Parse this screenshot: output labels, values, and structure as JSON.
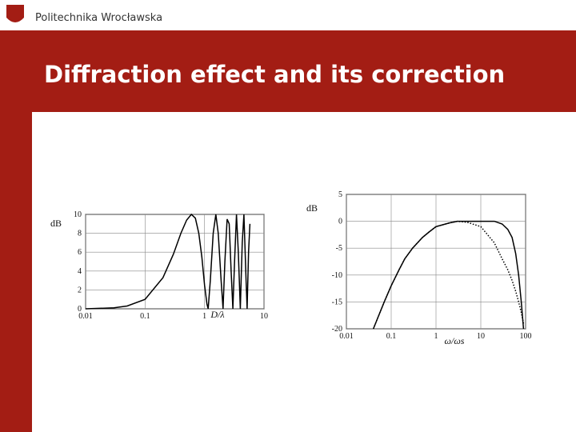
{
  "header": {
    "logo_text": "Politechnika Wrocławska",
    "title": "Diffraction effect and its correction"
  },
  "chart_data": [
    {
      "type": "line",
      "y_label": "dB",
      "x_label": "D/λ",
      "xlog": true,
      "grid": true,
      "xlim": [
        0.01,
        10
      ],
      "xticks": [
        0.01,
        0.1,
        1,
        10
      ],
      "ylim": [
        0,
        10
      ],
      "yticks": [
        0,
        2,
        4,
        6,
        8,
        10
      ],
      "x": [
        0.01,
        0.03,
        0.05,
        0.1,
        0.2,
        0.3,
        0.4,
        0.5,
        0.6,
        0.7,
        0.8,
        0.9,
        1.0,
        1.1,
        1.15,
        1.25,
        1.4,
        1.55,
        1.7,
        1.9,
        2.05,
        2.2,
        2.4,
        2.6,
        2.8,
        3.0,
        3.2,
        3.45,
        3.7,
        4.0,
        4.3,
        4.6,
        5.0,
        5.2,
        5.5,
        5.8
      ],
      "values": [
        0,
        0.1,
        0.3,
        1,
        3.3,
        5.8,
        8,
        9.4,
        10,
        9.6,
        8,
        5.5,
        2.5,
        0.5,
        0,
        3,
        8,
        10,
        8,
        3,
        0,
        5,
        9.5,
        9,
        4,
        0,
        5,
        10,
        6,
        0,
        7,
        10,
        3,
        0,
        6,
        9
      ],
      "color": "#000000"
    },
    {
      "type": "line",
      "y_label": "dB",
      "x_label": "ω/ωs",
      "xlog": true,
      "grid": true,
      "xlim": [
        0.01,
        100
      ],
      "xticks": [
        0.01,
        0.1,
        1,
        10,
        100
      ],
      "ylim": [
        -20,
        5
      ],
      "yticks": [
        -20,
        -15,
        -10,
        -5,
        0,
        5
      ],
      "x": [
        0.04,
        0.05,
        0.07,
        0.1,
        0.15,
        0.2,
        0.3,
        0.5,
        0.7,
        1,
        2,
        3,
        5,
        10,
        20,
        30,
        40,
        50,
        60,
        70,
        80,
        90
      ],
      "series": [
        {
          "color": "#000000",
          "style": "solid",
          "values": [
            -20,
            -18,
            -15,
            -12,
            -9,
            -7,
            -5,
            -3,
            -2,
            -1,
            -0.3,
            0,
            0,
            0,
            0,
            -0.5,
            -1.5,
            -3,
            -6,
            -10,
            -15,
            -20
          ]
        },
        {
          "color": "#000000",
          "style": "dotted",
          "values": [
            -20,
            -18,
            -15,
            -12,
            -9,
            -7,
            -5,
            -3,
            -2,
            -1,
            -0.3,
            0,
            -0.2,
            -1,
            -4,
            -7,
            -9,
            -11,
            -13,
            -15,
            -17,
            -19
          ]
        }
      ]
    }
  ]
}
